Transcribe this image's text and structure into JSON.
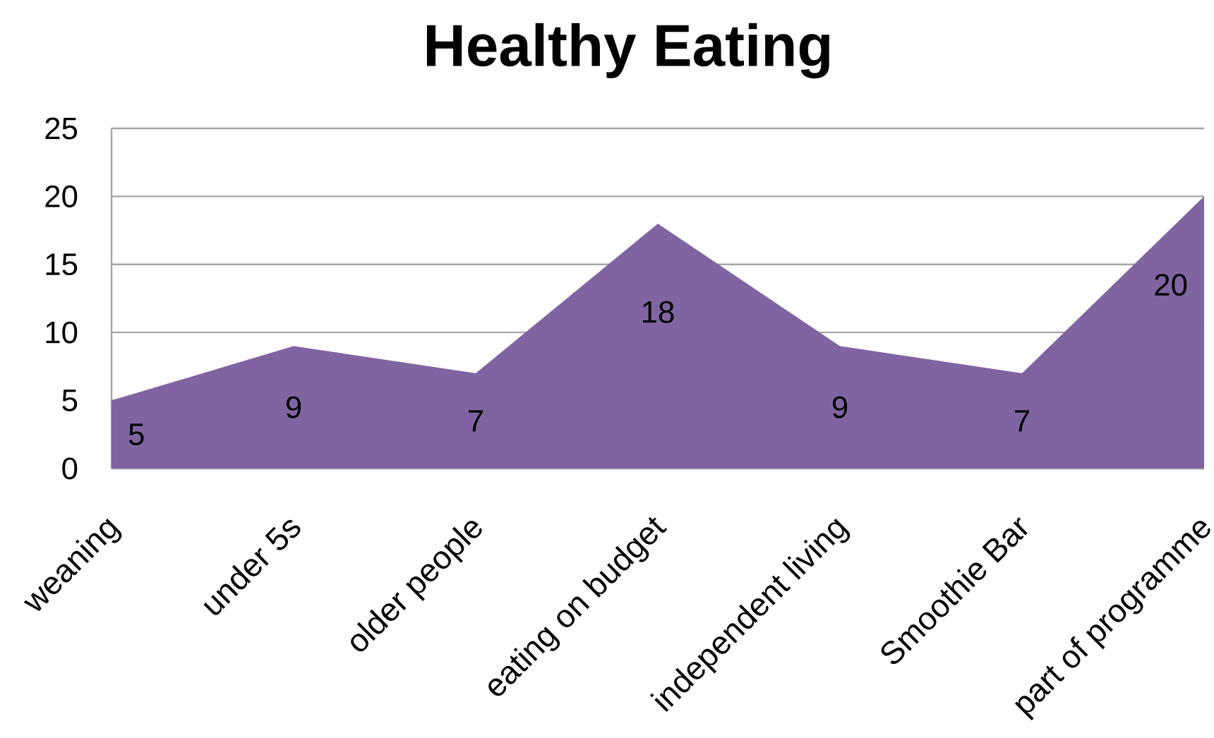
{
  "chart_data": {
    "type": "area",
    "title": "Healthy Eating",
    "categories": [
      "weaning",
      "under 5s",
      "older people",
      "eating on budget",
      "independent living",
      "Smoothie Bar",
      "part of programme"
    ],
    "values": [
      5,
      9,
      7,
      18,
      9,
      7,
      20
    ],
    "color": "#8064a2",
    "ylim": [
      0,
      25
    ],
    "yticks": [
      0,
      5,
      10,
      15,
      20,
      25
    ],
    "grid": "y",
    "data_labels": true
  }
}
